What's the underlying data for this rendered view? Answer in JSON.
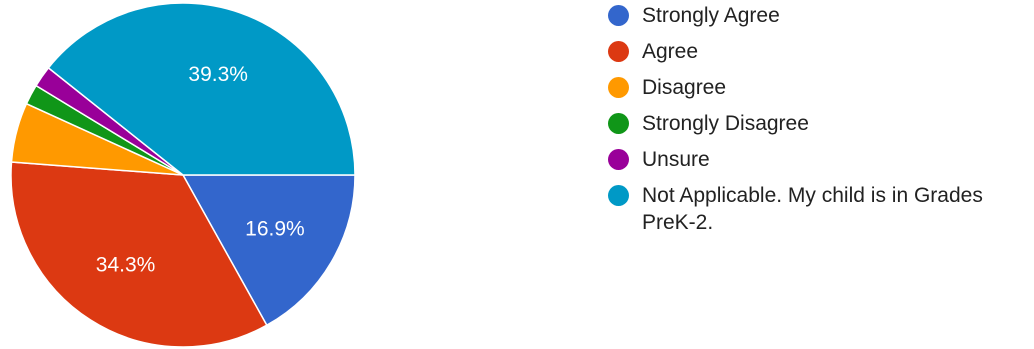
{
  "chart_data": {
    "type": "pie",
    "title": "",
    "slices": [
      {
        "label": "Strongly Agree",
        "value": 16.9,
        "color": "#3366cc",
        "display": "16.9%"
      },
      {
        "label": "Agree",
        "value": 34.3,
        "color": "#dc3912",
        "display": "34.3%"
      },
      {
        "label": "Disagree",
        "value": 5.6,
        "color": "#ff9900",
        "display": ""
      },
      {
        "label": "Strongly Disagree",
        "value": 1.9,
        "color": "#109618",
        "display": ""
      },
      {
        "label": "Unsure",
        "value": 2.0,
        "color": "#990099",
        "display": ""
      },
      {
        "label": "Not Applicable. My child is in Grades PreK-2.",
        "value": 39.3,
        "color": "#0099c6",
        "display": "39.3%"
      }
    ],
    "legend_position": "right"
  }
}
